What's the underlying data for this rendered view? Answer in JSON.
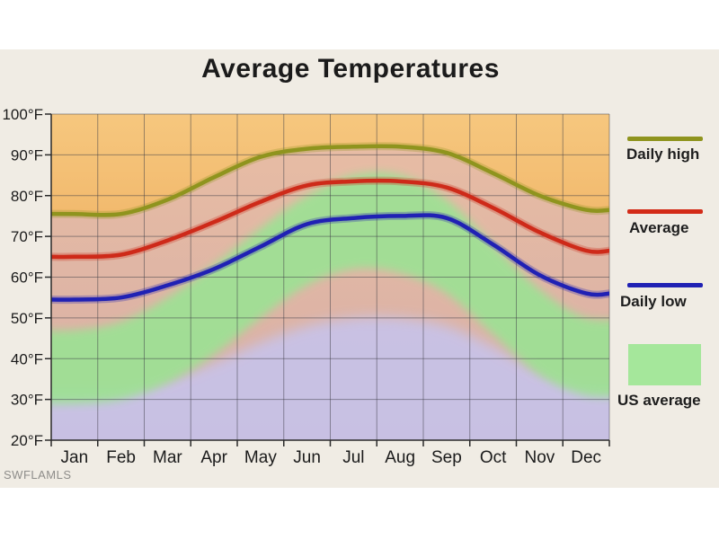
{
  "title": "Average Temperatures",
  "watermark": "SWFLAMLS",
  "legend": [
    {
      "label": "Daily high",
      "type": "line",
      "color": "#8f941e"
    },
    {
      "label": "Average",
      "type": "line",
      "color": "#d32b18"
    },
    {
      "label": "Daily low",
      "type": "line",
      "color": "#2021b4"
    },
    {
      "label": "US average",
      "type": "area",
      "color": "#a5e79b"
    }
  ],
  "chart_data": {
    "type": "line",
    "title": "Average Temperatures",
    "categories": [
      "Jan",
      "Feb",
      "Mar",
      "Apr",
      "May",
      "Jun",
      "Jul",
      "Aug",
      "Sep",
      "Oct",
      "Nov",
      "Dec"
    ],
    "y_tick_labels": [
      "100°F",
      "90°F",
      "80°F",
      "70°F",
      "60°F",
      "50°F",
      "40°F",
      "30°F",
      "20°F"
    ],
    "ylim": [
      20,
      100
    ],
    "grid": true,
    "legend_position": "right",
    "series": [
      {
        "name": "Daily high",
        "color": "#8f941e",
        "values": [
          75.5,
          75.5,
          79,
          84.5,
          89.5,
          91.5,
          92,
          92,
          90.5,
          85.5,
          80,
          76.5
        ]
      },
      {
        "name": "Average",
        "color": "#ce2a19",
        "values": [
          65,
          65.5,
          69,
          73.5,
          78.5,
          82.5,
          83.5,
          83.5,
          82,
          77,
          71,
          66.5
        ]
      },
      {
        "name": "Daily low",
        "color": "#2021b4",
        "values": [
          54.5,
          55,
          58,
          62,
          67.5,
          73,
          74.5,
          75,
          74.5,
          68,
          60.5,
          56
        ]
      }
    ],
    "us_average_band": {
      "name": "US average",
      "color": "#9de194",
      "top": [
        47,
        49,
        55,
        63,
        72,
        80,
        85,
        85,
        79,
        68,
        57,
        50
      ],
      "bottom": [
        29,
        30,
        34,
        41,
        50,
        58,
        62,
        61,
        56,
        46,
        36,
        31
      ]
    },
    "background_regions": {
      "above_high_orange_top": "#f6c77e",
      "above_high_orange_bottom": "#e99c49",
      "between_lines_mauve_top": "#e7bca4",
      "between_lines_mauve_bottom": "#d5ada6",
      "lavender_bottom": "#c7c3ea",
      "lavender_top_curve": [
        33,
        33,
        35,
        39,
        44,
        48,
        50,
        50,
        48,
        43,
        37,
        34
      ]
    },
    "gridline_color": "#3b3b45",
    "axis_color": "#2a2a2a",
    "label_color": "#1b1b1b"
  }
}
